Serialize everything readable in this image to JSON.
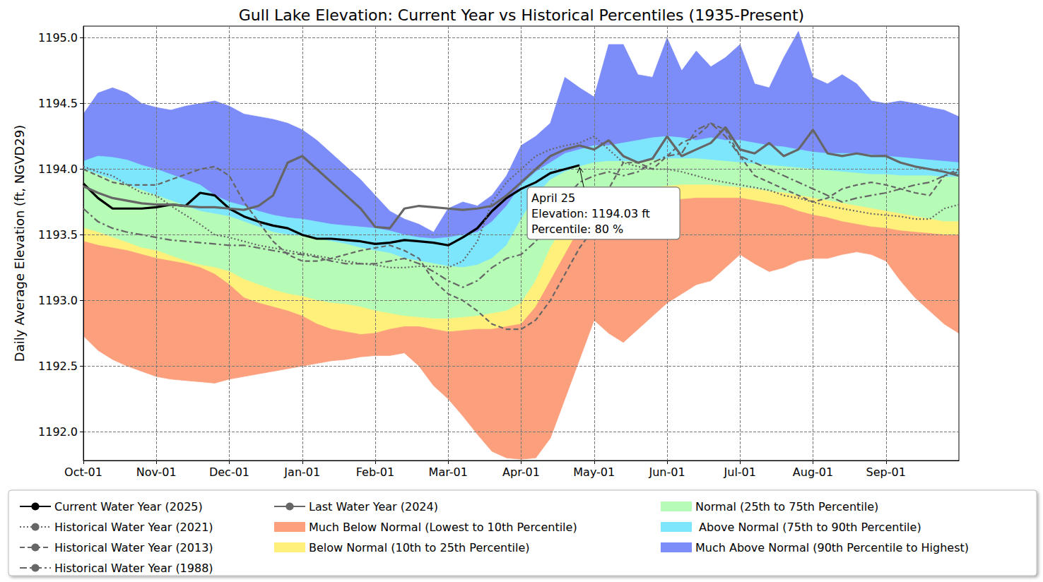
{
  "chart_data": {
    "type": "line",
    "title": "Gull Lake Elevation: Current Year vs Historical Percentiles (1935-Present)",
    "y_label": "Daily Average Elevation (ft, NGVD29)",
    "x": [
      "Oct-01",
      null,
      null,
      null,
      null,
      "Nov-01",
      null,
      null,
      null,
      null,
      "Dec-01",
      null,
      null,
      null,
      null,
      "Jan-01",
      null,
      null,
      null,
      null,
      "Feb-01",
      null,
      null,
      null,
      null,
      "Mar-01",
      null,
      null,
      null,
      null,
      "Apr-01",
      null,
      null,
      null,
      null,
      "May-01",
      null,
      null,
      null,
      null,
      "Jun-01",
      null,
      null,
      null,
      null,
      "Jul-01",
      null,
      null,
      null,
      null,
      "Aug-01",
      null,
      null,
      null,
      null,
      "Sep-01",
      null,
      null,
      null,
      null,
      null
    ],
    "ylim": [
      1191.78,
      1195.09
    ],
    "yticks": [
      {
        "value": 1192,
        "label": "1192.0"
      },
      1192.5,
      {
        "value": 1193,
        "label": "1193.0"
      },
      1193.5,
      {
        "value": 1194,
        "label": "1194.0"
      },
      1194.5,
      {
        "value": 1195,
        "label": "1195.0"
      }
    ],
    "grid": true,
    "legend": "bottom",
    "annotation": {
      "text": "April 25\nElevation: 1194.03 ft\nPercentile: 80 %",
      "y": 1194.03
    },
    "series": [
      {
        "name": "Current Water Year (2025)",
        "color": "#000000",
        "line_style": "solid",
        "values": [
          1193.89,
          1193.78,
          1193.7,
          1193.7,
          1193.7,
          1193.71,
          1193.73,
          1193.72,
          1193.82,
          1193.8,
          1193.7,
          1193.64,
          1193.6,
          1193.57,
          1193.55,
          1193.5,
          1193.47,
          1193.47,
          1193.46,
          1193.45,
          1193.43,
          1193.44,
          1193.46,
          1193.45,
          1193.44,
          1193.42,
          1193.48,
          1193.55,
          1193.68,
          1193.78,
          1193.85,
          1193.9,
          1193.97,
          1194.0,
          1194.03,
          null,
          null,
          null,
          null,
          null,
          null,
          null,
          null,
          null,
          null,
          null,
          null,
          null,
          null,
          null,
          null,
          null,
          null,
          null,
          null,
          null,
          null,
          null,
          null,
          null,
          null
        ]
      },
      {
        "name": "Historical Water Year (2021)",
        "color": "#666666",
        "line_style": "dotted",
        "values": [
          1194.02,
          1193.98,
          1193.95,
          1193.88,
          1193.82,
          1193.8,
          1193.72,
          1193.65,
          1193.58,
          1193.5,
          1193.48,
          1193.45,
          1193.42,
          1193.4,
          1193.38,
          1193.36,
          1193.34,
          1193.32,
          1193.3,
          1193.28,
          1193.27,
          1193.25,
          1193.25,
          1193.26,
          1193.26,
          1193.25,
          1193.3,
          1193.45,
          1193.75,
          1193.9,
          1194.0,
          1194.1,
          1194.15,
          1194.18,
          1194.2,
          1194.25,
          1194.15,
          1194.05,
          1194.02,
          1194.0,
          1194.0,
          1193.98,
          1193.95,
          1193.92,
          1193.9,
          1193.88,
          1193.86,
          1193.84,
          1193.8,
          1193.78,
          1193.75,
          1193.72,
          1193.7,
          1193.68,
          1193.66,
          1193.65,
          1193.64,
          1193.62,
          1193.62,
          1193.7,
          1193.73
        ]
      },
      {
        "name": "Historical Water Year (2013)",
        "color": "#666666",
        "line_style": "dashed",
        "values": [
          1194.0,
          1193.95,
          1193.9,
          1193.88,
          1193.88,
          1193.88,
          1193.92,
          1193.96,
          1194.0,
          1194.02,
          1193.95,
          1193.75,
          1193.6,
          1193.45,
          1193.35,
          1193.3,
          1193.3,
          1193.32,
          1193.35,
          1193.38,
          1193.4,
          1193.42,
          1193.38,
          1193.32,
          1193.15,
          1193.05,
          1193.0,
          1192.92,
          1192.82,
          1192.78,
          1192.78,
          1192.85,
          1193.0,
          1193.2,
          1193.4,
          1193.55,
          1193.85,
          1194.05,
          1194.05,
          1194.0,
          1194.1,
          1194.2,
          1194.25,
          1194.35,
          1194.3,
          1194.1,
          1193.95,
          1193.9,
          1193.85,
          1193.8,
          1193.75,
          1193.78,
          1193.85,
          1193.88,
          1193.9,
          1193.88,
          1193.85,
          1193.82,
          1193.8,
          1193.95,
          1194.0
        ]
      },
      {
        "name": "Historical Water Year (1988)",
        "color": "#666666",
        "line_style": "dashdot",
        "values": [
          1193.7,
          1193.6,
          1193.55,
          1193.52,
          1193.5,
          1193.48,
          1193.46,
          1193.45,
          1193.44,
          1193.43,
          1193.42,
          1193.42,
          1193.4,
          1193.38,
          1193.36,
          1193.35,
          1193.33,
          1193.3,
          1193.28,
          1193.28,
          1193.28,
          1193.3,
          1193.32,
          1193.28,
          1193.22,
          1193.15,
          1193.1,
          1193.15,
          1193.25,
          1193.32,
          1193.35,
          1193.45,
          1193.6,
          1193.78,
          1193.9,
          1193.95,
          1193.98,
          1193.95,
          1193.98,
          1194.05,
          1194.1,
          1194.12,
          1194.3,
          1194.35,
          1194.25,
          1194.1,
          1194.05,
          1194.0,
          1193.95,
          1193.9,
          1193.85,
          1193.8,
          1193.75,
          1193.78,
          1193.8,
          1193.82,
          1193.85,
          1193.88,
          1193.9,
          1193.95,
          1193.98
        ]
      },
      {
        "name": "Last Water Year (2024)",
        "color": "#666666",
        "line_style": "solid",
        "values": [
          1193.87,
          1193.82,
          1193.78,
          1193.76,
          1193.74,
          1193.73,
          1193.73,
          1193.72,
          1193.71,
          1193.71,
          1193.7,
          1193.69,
          1193.72,
          1193.8,
          1194.05,
          1194.1,
          1194.0,
          1193.9,
          1193.8,
          1193.7,
          1193.56,
          1193.55,
          1193.7,
          1193.72,
          1193.71,
          1193.7,
          1193.69,
          1193.7,
          1193.72,
          1193.8,
          1193.9,
          1194.0,
          1194.1,
          1194.15,
          1194.18,
          1194.15,
          1194.22,
          1194.1,
          1194.05,
          1194.08,
          1194.25,
          1194.1,
          1194.15,
          1194.2,
          1194.32,
          1194.15,
          1194.12,
          1194.2,
          1194.1,
          1194.15,
          1194.3,
          1194.12,
          1194.1,
          1194.12,
          1194.1,
          1194.1,
          1194.05,
          1194.02,
          1194.0,
          1193.98,
          1193.95
        ]
      },
      {
        "name": "Much Below Normal (Lowest to 10th Percentile)",
        "type": "area",
        "color": "#fc9f7d",
        "values": [
          1193.45,
          1193.42,
          1193.4,
          1193.38,
          1193.35,
          1193.32,
          1193.3,
          1193.28,
          1193.25,
          1193.2,
          1193.12,
          1193.02,
          1192.98,
          1192.95,
          1192.92,
          1192.88,
          1192.82,
          1192.78,
          1192.76,
          1192.74,
          1192.75,
          1192.78,
          1192.8,
          1192.8,
          1192.78,
          1192.76,
          1192.77,
          1192.78,
          1192.78,
          1192.8,
          1192.82,
          1192.95,
          1193.15,
          1193.35,
          1193.55,
          1193.65,
          1193.7,
          1193.72,
          1193.74,
          1193.75,
          1193.76,
          1193.77,
          1193.78,
          1193.78,
          1193.78,
          1193.78,
          1193.76,
          1193.74,
          1193.72,
          1193.68,
          1193.65,
          1193.63,
          1193.6,
          1193.58,
          1193.56,
          1193.55,
          1193.53,
          1193.52,
          1193.51,
          1193.5,
          1193.5
        ],
        "floor": [
          1192.73,
          1192.62,
          1192.55,
          1192.5,
          1192.46,
          1192.42,
          1192.4,
          1192.39,
          1192.38,
          1192.37,
          1192.4,
          1192.42,
          1192.44,
          1192.46,
          1192.48,
          1192.5,
          1192.52,
          1192.54,
          1192.55,
          1192.57,
          1192.58,
          1192.58,
          1192.6,
          1192.5,
          1192.35,
          1192.25,
          1192.12,
          1191.98,
          1191.85,
          1191.8,
          1191.79,
          1191.8,
          1191.95,
          1192.25,
          1192.55,
          1192.85,
          1192.75,
          1192.68,
          1192.78,
          1192.88,
          1192.98,
          1193.05,
          1193.12,
          1193.15,
          1193.25,
          1193.35,
          1193.28,
          1193.22,
          1193.25,
          1193.3,
          1193.32,
          1193.32,
          1193.35,
          1193.37,
          1193.35,
          1193.3,
          1193.15,
          1193.02,
          1192.92,
          1192.82,
          1192.75
        ]
      },
      {
        "name": "Below Normal (10th to 25th Percentile)",
        "type": "area",
        "color": "#fef07b",
        "values": [
          1193.55,
          1193.52,
          1193.48,
          1193.44,
          1193.4,
          1193.38,
          1193.34,
          1193.3,
          1193.27,
          1193.25,
          1193.22,
          1193.16,
          1193.12,
          1193.08,
          1193.05,
          1193.03,
          1193.0,
          1192.98,
          1192.97,
          1192.95,
          1192.92,
          1192.9,
          1192.88,
          1192.87,
          1192.86,
          1192.86,
          1192.87,
          1192.88,
          1192.9,
          1192.92,
          1192.98,
          1193.15,
          1193.4,
          1193.58,
          1193.7,
          1193.78,
          1193.82,
          1193.84,
          1193.85,
          1193.86,
          1193.87,
          1193.88,
          1193.88,
          1193.88,
          1193.87,
          1193.86,
          1193.85,
          1193.83,
          1193.82,
          1193.8,
          1193.78,
          1193.76,
          1193.74,
          1193.72,
          1193.7,
          1193.68,
          1193.66,
          1193.64,
          1193.62,
          1193.6,
          1193.6
        ]
      },
      {
        "name": "Normal (25th to 75th Percentile)",
        "type": "area",
        "color": "#b6fcb6",
        "values": [
          1194.0,
          1193.96,
          1193.92,
          1193.88,
          1193.84,
          1193.8,
          1193.76,
          1193.72,
          1193.68,
          1193.66,
          1193.64,
          1193.6,
          1193.56,
          1193.52,
          1193.5,
          1193.49,
          1193.47,
          1193.45,
          1193.43,
          1193.4,
          1193.38,
          1193.36,
          1193.32,
          1193.3,
          1193.28,
          1193.26,
          1193.25,
          1193.27,
          1193.32,
          1193.42,
          1193.62,
          1193.8,
          1193.92,
          1193.98,
          1194.02,
          1194.05,
          1194.06,
          1194.06,
          1194.06,
          1194.07,
          1194.08,
          1194.08,
          1194.08,
          1194.07,
          1194.06,
          1194.05,
          1194.04,
          1194.03,
          1194.02,
          1194.01,
          1194.0,
          1193.99,
          1193.98,
          1193.97,
          1193.96,
          1193.96,
          1193.95,
          1193.95,
          1193.95,
          1193.94,
          1193.94
        ]
      },
      {
        "name": " Above Normal (75th to 90th Percentile)",
        "type": "area",
        "color": "#7de5fc",
        "values": [
          1194.06,
          1194.1,
          1194.09,
          1194.07,
          1194.03,
          1194.0,
          1193.96,
          1193.92,
          1193.88,
          1193.8,
          1193.75,
          1193.72,
          1193.68,
          1193.65,
          1193.63,
          1193.62,
          1193.6,
          1193.58,
          1193.57,
          1193.56,
          1193.55,
          1193.53,
          1193.5,
          1193.48,
          1193.47,
          1193.48,
          1193.5,
          1193.52,
          1193.6,
          1193.72,
          1193.88,
          1193.98,
          1194.05,
          1194.12,
          1194.15,
          1194.18,
          1194.18,
          1194.2,
          1194.22,
          1194.24,
          1194.25,
          1194.24,
          1194.22,
          1194.24,
          1194.22,
          1194.22,
          1194.2,
          1194.18,
          1194.17,
          1194.15,
          1194.13,
          1194.12,
          1194.12,
          1194.12,
          1194.11,
          1194.1,
          1194.09,
          1194.08,
          1194.07,
          1194.06,
          1194.05
        ]
      },
      {
        "name": "Much Above Normal (90th Percentile to Highest)",
        "type": "area",
        "color": "#7c8cf8",
        "values": [
          1194.42,
          1194.58,
          1194.62,
          1194.58,
          1194.5,
          1194.47,
          1194.45,
          1194.48,
          1194.5,
          1194.52,
          1194.48,
          1194.42,
          1194.4,
          1194.38,
          1194.35,
          1194.3,
          1194.22,
          1194.12,
          1194.02,
          1193.92,
          1193.8,
          1193.68,
          1193.62,
          1193.58,
          1193.52,
          1193.7,
          1193.75,
          1193.72,
          1193.8,
          1193.95,
          1194.18,
          1194.25,
          1194.35,
          1194.7,
          1194.62,
          1194.55,
          1194.95,
          1194.95,
          1194.72,
          1194.7,
          1195.0,
          1194.75,
          1194.9,
          1194.78,
          1194.85,
          1194.95,
          1194.65,
          1194.62,
          1194.85,
          1195.05,
          1194.7,
          1194.65,
          1194.72,
          1194.65,
          1194.52,
          1194.5,
          1194.52,
          1194.5,
          1194.47,
          1194.45,
          1194.4
        ]
      }
    ]
  }
}
